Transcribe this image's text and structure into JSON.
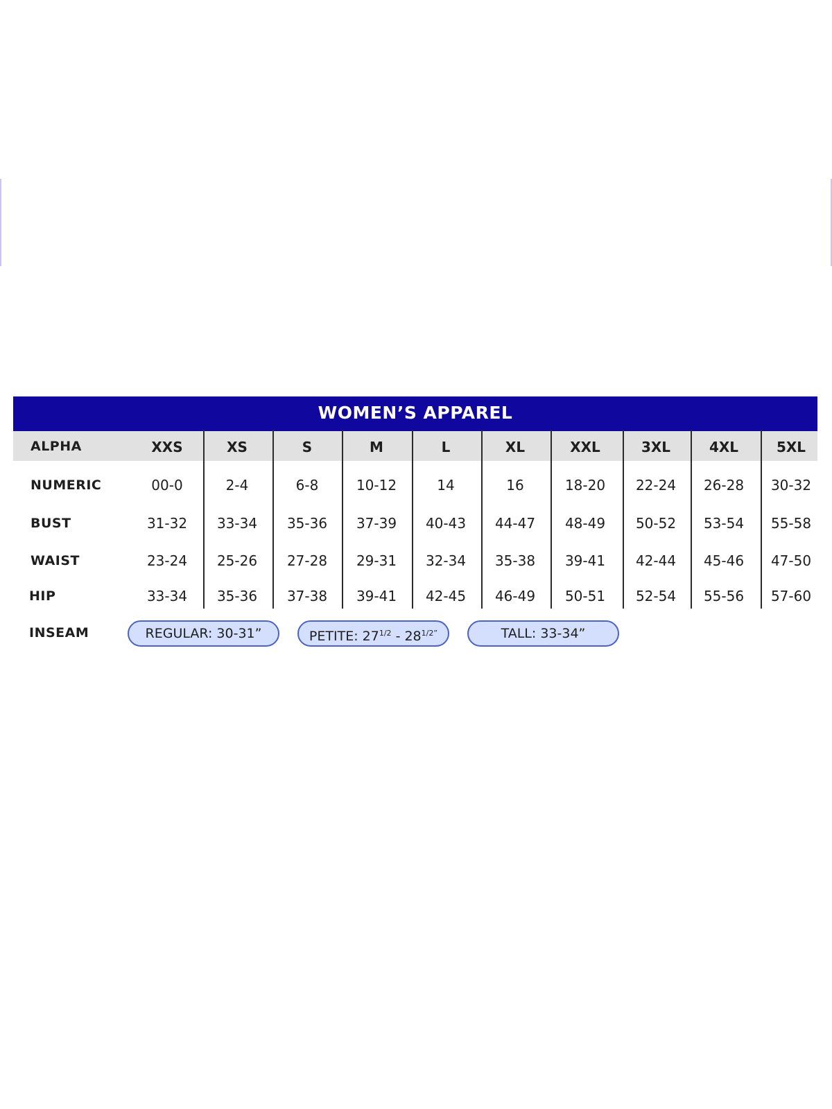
{
  "title": "WOMEN’S APPAREL",
  "accent_color": "#10079f",
  "header_band_color": "#e1e1e1",
  "pill_color": "#d3dffc",
  "table": {
    "alpha_label": "ALPHA",
    "sizes": [
      "XXS",
      "XS",
      "S",
      "M",
      "L",
      "XL",
      "XXL",
      "3XL",
      "4XL",
      "5XL"
    ],
    "rows": [
      {
        "label": "NUMERIC",
        "values": [
          "00-0",
          "2-4",
          "6-8",
          "10-12",
          "14",
          "16",
          "18-20",
          "22-24",
          "26-28",
          "30-32"
        ]
      },
      {
        "label": "BUST",
        "values": [
          "31-32",
          "33-34",
          "35-36",
          "37-39",
          "40-43",
          "44-47",
          "48-49",
          "50-52",
          "53-54",
          "55-58"
        ]
      },
      {
        "label": "WAIST",
        "values": [
          "23-24",
          "25-26",
          "27-28",
          "29-31",
          "32-34",
          "35-38",
          "39-41",
          "42-44",
          "45-46",
          "47-50"
        ]
      },
      {
        "label": "HIP",
        "values": [
          "33-34",
          "35-36",
          "37-38",
          "39-41",
          "42-45",
          "46-49",
          "50-51",
          "52-54",
          "55-56",
          "57-60"
        ]
      }
    ]
  },
  "inseam": {
    "label": "INSEAM",
    "regular": "REGULAR: 30-31”",
    "petite": {
      "prefix": "PETITE: 27",
      "frac1": "1/2",
      "mid": " - 28",
      "frac2": "1/2”"
    },
    "tall": "TALL: 33-34”"
  }
}
